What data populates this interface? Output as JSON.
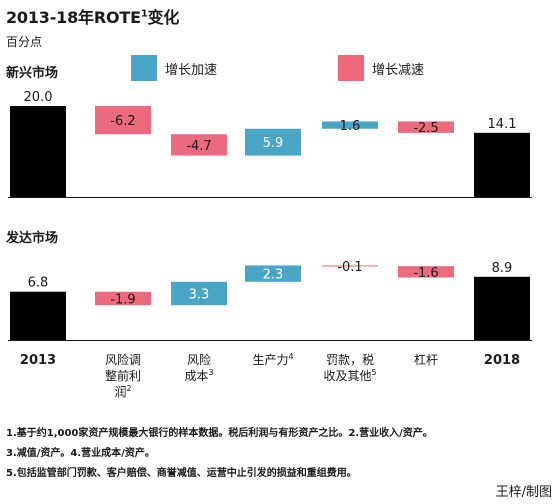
{
  "title": "2013-18年ROTE",
  "title_sup": "1",
  "title_suffix": "变化",
  "subtitle": "百分点",
  "colors": {
    "increase": "#4aa6c6",
    "decrease": "#ec6a7e",
    "total": "#000000"
  },
  "legend": {
    "increase": "增长加速",
    "decrease": "增长减速"
  },
  "chart_data": [
    {
      "type": "bar",
      "title": "新兴市场",
      "categories": [
        "2013",
        "风险调整前利润2",
        "风险成本3",
        "生产力4",
        "罚款，税收及其他5",
        "杠杆",
        "2018"
      ],
      "values": [
        20.0,
        -6.2,
        -4.7,
        5.9,
        1.6,
        -2.5,
        14.1
      ],
      "labels": [
        "20.0",
        "-6.2",
        "-4.7",
        "5.9",
        "1.6",
        "-2.5",
        "14.1"
      ],
      "kinds": [
        "total",
        "decrease",
        "decrease",
        "increase",
        "increase",
        "decrease",
        "total"
      ]
    },
    {
      "type": "bar",
      "title": "发达市场",
      "categories": [
        "2013",
        "风险调整前利润2",
        "风险成本3",
        "生产力4",
        "罚款，税收及其他5",
        "杠杆",
        "2018"
      ],
      "values": [
        6.8,
        -1.9,
        3.3,
        2.3,
        -0.1,
        -1.6,
        8.9
      ],
      "labels": [
        "6.8",
        "-1.9",
        "3.3",
        "2.3",
        "-0.1",
        "-1.6",
        "8.9"
      ],
      "kinds": [
        "total",
        "decrease",
        "increase",
        "increase",
        "decrease",
        "decrease",
        "total"
      ]
    }
  ],
  "x_labels": [
    {
      "lines": [
        "2013"
      ],
      "sup": "",
      "bold": true
    },
    {
      "lines": [
        "风险调",
        "整前利",
        "润"
      ],
      "sup": "2",
      "bold": false
    },
    {
      "lines": [
        "风险",
        "成本"
      ],
      "sup": "3",
      "bold": false
    },
    {
      "lines": [
        "生产力"
      ],
      "sup": "4",
      "bold": false
    },
    {
      "lines": [
        "罚款，税",
        "收及其他"
      ],
      "sup": "5",
      "bold": false
    },
    {
      "lines": [
        "杠杆"
      ],
      "sup": "",
      "bold": false
    },
    {
      "lines": [
        "2018"
      ],
      "sup": "",
      "bold": true
    }
  ],
  "footnotes": [
    "1.基于约1,000家资产规模最大银行的样本数据。税后利润与有形资产之比。2.营业收入/资产。",
    "3.减值/资产。4.营业成本/资产。",
    "5.包括监管部门罚款、客户赔偿、商誉减值、运营中止引发的损益和重组费用。"
  ],
  "credit": "王梓/制图"
}
